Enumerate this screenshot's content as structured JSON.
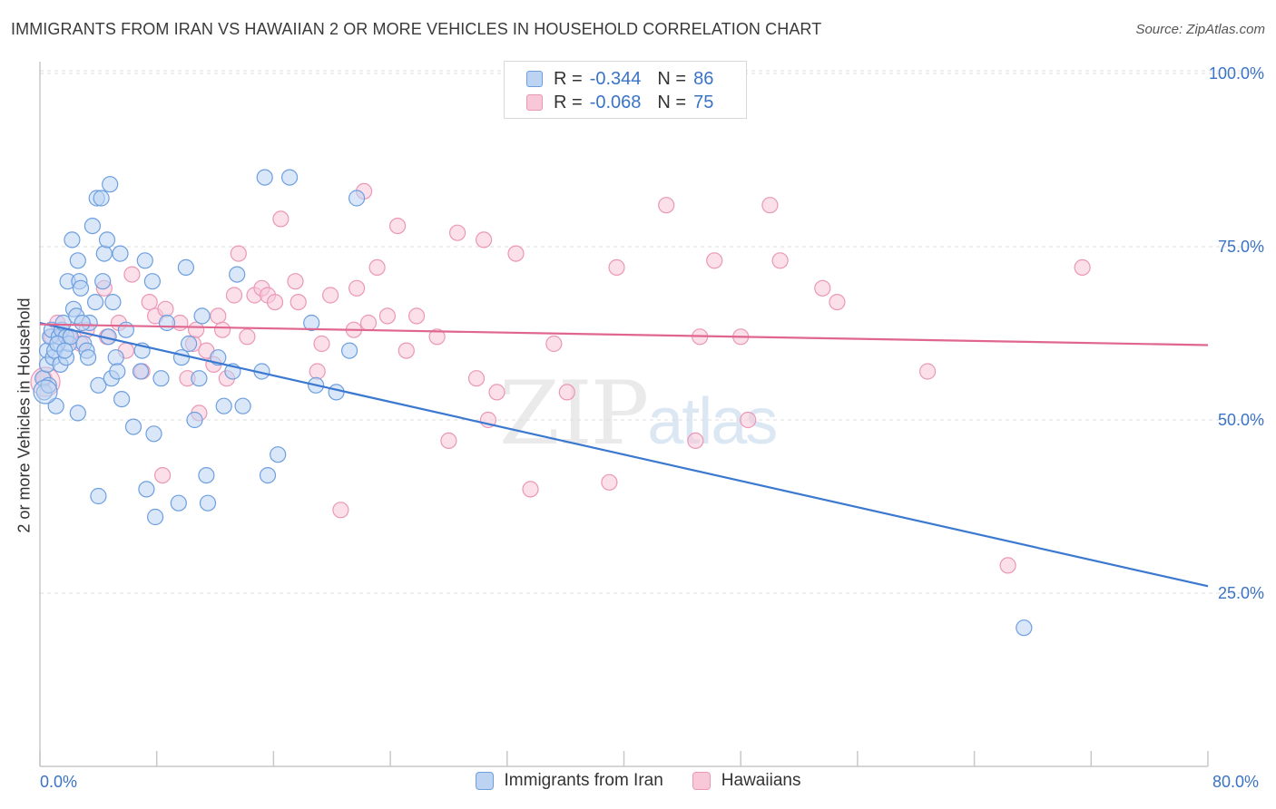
{
  "title": "IMMIGRANTS FROM IRAN VS HAWAIIAN 2 OR MORE VEHICLES IN HOUSEHOLD CORRELATION CHART",
  "source": "Source: ZipAtlas.com",
  "watermark": {
    "zip": "ZIP",
    "atlas": "atlas"
  },
  "colors": {
    "blue": "#3b78d0",
    "blue_fill": "#bcd4f2",
    "blue_stroke": "#6d9fe0",
    "pink": "#e0668f",
    "pink_fill": "#f8c7d8",
    "pink_stroke": "#eb97b6",
    "tick_label": "#3a73c6"
  },
  "legend": {
    "rows": [
      {
        "r_label": "R = ",
        "r_value": "-0.344",
        "n_label": "N = ",
        "n_value": "86"
      },
      {
        "r_label": "R = ",
        "r_value": "-0.068",
        "n_label": "N = ",
        "n_value": "75"
      }
    ]
  },
  "legend_bottom": [
    "Immigrants from Iran",
    "Hawaiians"
  ],
  "x_tick_labels": {
    "left": "0.0%",
    "right": "80.0%"
  },
  "chart_data": {
    "type": "scatter",
    "xlabel": "",
    "ylabel": "2 or more Vehicles in Household",
    "xlim": [
      0,
      80
    ],
    "ylim": [
      0,
      104
    ],
    "y_ticks": [
      {
        "value": 100,
        "label": "100.0%"
      },
      {
        "value": 75,
        "label": "75.0%"
      },
      {
        "value": 50,
        "label": "50.0%"
      },
      {
        "value": 25,
        "label": "25.0%"
      }
    ],
    "x_ticks": [
      0,
      8,
      16,
      24,
      32,
      40,
      48,
      56,
      64,
      72,
      80
    ],
    "grid": "horizontal dashed",
    "series": [
      {
        "name": "Immigrants from Iran",
        "color": "blue",
        "trend": {
          "x": [
            0,
            80
          ],
          "y": [
            64.0,
            26.0
          ]
        },
        "points": [
          [
            0.2,
            56
          ],
          [
            0.3,
            54
          ],
          [
            0.5,
            60
          ],
          [
            0.5,
            58
          ],
          [
            0.7,
            62
          ],
          [
            0.8,
            63
          ],
          [
            0.9,
            59
          ],
          [
            1.0,
            60
          ],
          [
            1.1,
            52
          ],
          [
            1.3,
            62
          ],
          [
            1.4,
            58
          ],
          [
            1.5,
            63
          ],
          [
            1.6,
            64
          ],
          [
            1.8,
            62
          ],
          [
            1.8,
            59
          ],
          [
            1.9,
            70
          ],
          [
            2.0,
            61
          ],
          [
            2.2,
            76
          ],
          [
            2.3,
            66
          ],
          [
            2.5,
            65
          ],
          [
            2.6,
            51
          ],
          [
            2.6,
            73
          ],
          [
            2.7,
            70
          ],
          [
            2.8,
            69
          ],
          [
            3.0,
            61
          ],
          [
            3.2,
            60
          ],
          [
            3.4,
            64
          ],
          [
            3.6,
            78
          ],
          [
            3.8,
            67
          ],
          [
            3.9,
            82
          ],
          [
            4.0,
            55
          ],
          [
            4.0,
            39
          ],
          [
            4.2,
            82
          ],
          [
            4.3,
            70
          ],
          [
            4.4,
            74
          ],
          [
            4.6,
            76
          ],
          [
            4.8,
            84
          ],
          [
            4.9,
            56
          ],
          [
            5.0,
            67
          ],
          [
            5.2,
            59
          ],
          [
            5.3,
            57
          ],
          [
            5.5,
            74
          ],
          [
            5.6,
            53
          ],
          [
            6.4,
            49
          ],
          [
            6.9,
            57
          ],
          [
            7.0,
            60
          ],
          [
            7.2,
            73
          ],
          [
            7.3,
            40
          ],
          [
            7.7,
            70
          ],
          [
            7.8,
            48
          ],
          [
            7.9,
            36
          ],
          [
            8.3,
            56
          ],
          [
            8.7,
            64
          ],
          [
            9.5,
            38
          ],
          [
            9.7,
            59
          ],
          [
            10.0,
            72
          ],
          [
            10.2,
            61
          ],
          [
            10.6,
            50
          ],
          [
            10.9,
            56
          ],
          [
            11.1,
            65
          ],
          [
            11.4,
            42
          ],
          [
            11.5,
            38
          ],
          [
            12.2,
            59
          ],
          [
            12.6,
            52
          ],
          [
            13.2,
            57
          ],
          [
            13.5,
            71
          ],
          [
            13.9,
            52
          ],
          [
            15.2,
            57
          ],
          [
            15.4,
            85
          ],
          [
            15.6,
            42
          ],
          [
            16.3,
            45
          ],
          [
            17.1,
            85
          ],
          [
            18.6,
            64
          ],
          [
            18.9,
            55
          ],
          [
            20.3,
            54
          ],
          [
            21.2,
            60
          ],
          [
            21.7,
            82
          ],
          [
            67.4,
            20
          ],
          [
            1.2,
            61
          ],
          [
            2.1,
            62
          ],
          [
            3.3,
            59
          ],
          [
            5.9,
            63
          ],
          [
            1.7,
            60
          ],
          [
            2.9,
            64
          ],
          [
            0.6,
            55
          ],
          [
            4.7,
            62
          ]
        ]
      },
      {
        "name": "Hawaiians",
        "color": "pink",
        "trend": {
          "x": [
            0,
            80
          ],
          "y": [
            63.8,
            60.8
          ]
        },
        "points": [
          [
            0.3,
            56
          ],
          [
            0.8,
            62
          ],
          [
            1.2,
            64
          ],
          [
            2.0,
            62
          ],
          [
            2.8,
            61
          ],
          [
            3.2,
            63
          ],
          [
            4.4,
            69
          ],
          [
            4.6,
            62
          ],
          [
            5.4,
            64
          ],
          [
            5.9,
            60
          ],
          [
            6.3,
            71
          ],
          [
            7.0,
            57
          ],
          [
            7.5,
            67
          ],
          [
            7.9,
            65
          ],
          [
            8.4,
            42
          ],
          [
            8.6,
            66
          ],
          [
            9.6,
            64
          ],
          [
            10.1,
            56
          ],
          [
            10.5,
            61
          ],
          [
            10.7,
            63
          ],
          [
            10.9,
            51
          ],
          [
            11.4,
            60
          ],
          [
            11.9,
            58
          ],
          [
            12.2,
            65
          ],
          [
            12.5,
            63
          ],
          [
            12.8,
            56
          ],
          [
            13.3,
            68
          ],
          [
            13.6,
            74
          ],
          [
            14.2,
            62
          ],
          [
            14.7,
            68
          ],
          [
            15.2,
            69
          ],
          [
            15.6,
            68
          ],
          [
            16.1,
            67
          ],
          [
            16.5,
            79
          ],
          [
            17.5,
            70
          ],
          [
            17.7,
            67
          ],
          [
            19.0,
            57
          ],
          [
            19.3,
            61
          ],
          [
            19.9,
            68
          ],
          [
            20.6,
            37
          ],
          [
            21.5,
            63
          ],
          [
            21.7,
            69
          ],
          [
            22.2,
            83
          ],
          [
            22.5,
            64
          ],
          [
            23.1,
            72
          ],
          [
            23.8,
            65
          ],
          [
            24.5,
            78
          ],
          [
            25.1,
            60
          ],
          [
            25.8,
            65
          ],
          [
            27.2,
            62
          ],
          [
            28.0,
            47
          ],
          [
            28.6,
            77
          ],
          [
            29.9,
            56
          ],
          [
            30.4,
            76
          ],
          [
            30.7,
            50
          ],
          [
            31.3,
            54
          ],
          [
            32.6,
            74
          ],
          [
            33.6,
            40
          ],
          [
            35.2,
            61
          ],
          [
            36.1,
            54
          ],
          [
            39.0,
            41
          ],
          [
            39.5,
            72
          ],
          [
            42.9,
            81
          ],
          [
            44.9,
            47
          ],
          [
            45.2,
            62
          ],
          [
            46.2,
            73
          ],
          [
            48.0,
            62
          ],
          [
            48.5,
            50
          ],
          [
            50.0,
            81
          ],
          [
            50.7,
            73
          ],
          [
            53.6,
            69
          ],
          [
            54.6,
            67
          ],
          [
            60.8,
            57
          ],
          [
            66.3,
            29
          ],
          [
            71.4,
            72
          ]
        ]
      }
    ]
  }
}
